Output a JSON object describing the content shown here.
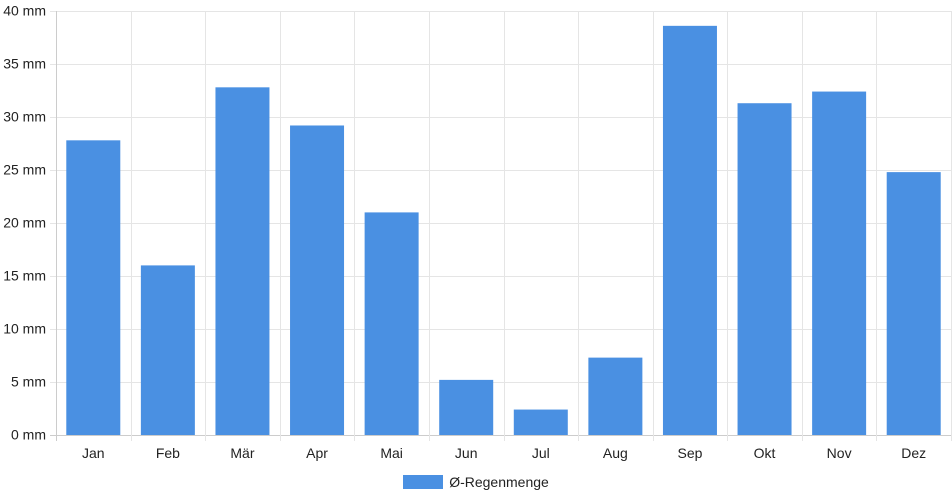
{
  "chart_data": {
    "type": "bar",
    "categories": [
      "Jan",
      "Feb",
      "Mär",
      "Apr",
      "Mai",
      "Jun",
      "Jul",
      "Aug",
      "Sep",
      "Okt",
      "Nov",
      "Dez"
    ],
    "series": [
      {
        "name": "Ø-Regenmenge",
        "values": [
          27.8,
          16.0,
          32.8,
          29.2,
          21.0,
          5.2,
          2.4,
          7.3,
          38.6,
          31.3,
          32.4,
          24.8
        ]
      }
    ],
    "ylim": [
      0,
      40
    ],
    "yticks": [
      0,
      5,
      10,
      15,
      20,
      25,
      30,
      35,
      40
    ],
    "ytick_labels": [
      "0 mm",
      "5 mm",
      "10 mm",
      "15 mm",
      "20 mm",
      "25 mm",
      "30 mm",
      "35 mm",
      "40 mm"
    ],
    "title": "",
    "xlabel": "",
    "ylabel": "",
    "grid": true,
    "legend_position": "bottom",
    "colors": {
      "bar": "#4a90e2",
      "grid": "#e5e5e5",
      "axis": "#cccccc",
      "text": "#222222"
    }
  }
}
